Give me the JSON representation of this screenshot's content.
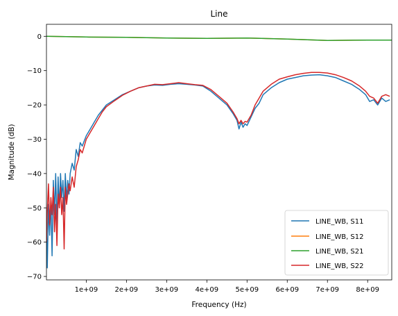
{
  "chart_data": {
    "type": "line",
    "title": "Line",
    "xlabel": "Frequency (Hz)",
    "ylabel": "Magnitude (dB)",
    "xlim": [
      10000000,
      8600000000
    ],
    "ylim": [
      -71,
      3.5
    ],
    "x_ticks": [
      1000000000,
      2000000000,
      3000000000,
      4000000000,
      5000000000,
      6000000000,
      7000000000,
      8000000000
    ],
    "x_tick_labels": [
      "1e+09",
      "2e+09",
      "3e+09",
      "4e+09",
      "5e+09",
      "6e+09",
      "7e+09",
      "8e+09"
    ],
    "y_ticks": [
      0,
      -10,
      -20,
      -30,
      -40,
      -50,
      -60,
      -70
    ],
    "y_tick_labels": [
      "0",
      "−10",
      "−20",
      "−30",
      "−40",
      "−50",
      "−60",
      "−70"
    ],
    "grid": false,
    "legend": "lower-right",
    "series": [
      {
        "name": "LINE_WB, S11",
        "color": "#1f77b4",
        "x": [
          10000000,
          30000000,
          60000000,
          90000000,
          120000000,
          150000000,
          180000000,
          210000000,
          240000000,
          270000000,
          300000000,
          330000000,
          360000000,
          390000000,
          420000000,
          450000000,
          480000000,
          510000000,
          540000000,
          570000000,
          600000000,
          650000000,
          700000000,
          750000000,
          800000000,
          850000000,
          900000000,
          1000000000,
          1100000000,
          1200000000,
          1300000000,
          1400000000,
          1500000000,
          1700000000,
          1900000000,
          2100000000,
          2300000000,
          2500000000,
          2700000000,
          2900000000,
          3100000000,
          3300000000,
          3500000000,
          3700000000,
          3900000000,
          4100000000,
          4300000000,
          4500000000,
          4650000000,
          4750000000,
          4800000000,
          4850000000,
          4900000000,
          4950000000,
          5000000000,
          5100000000,
          5200000000,
          5300000000,
          5400000000,
          5600000000,
          5800000000,
          6000000000,
          6200000000,
          6400000000,
          6600000000,
          6800000000,
          7000000000,
          7200000000,
          7400000000,
          7600000000,
          7800000000,
          7950000000,
          8050000000,
          8150000000,
          8250000000,
          8350000000,
          8450000000,
          8550000000
        ],
        "values": [
          -55,
          -67.5,
          -49,
          -58,
          -48,
          -64,
          -42,
          -52,
          -40,
          -55,
          -41,
          -50,
          -40,
          -47,
          -42,
          -51,
          -40,
          -48,
          -42,
          -46,
          -40,
          -37,
          -39,
          -33,
          -35,
          -31,
          -32,
          -29,
          -27,
          -25,
          -23,
          -21.5,
          -20,
          -18.5,
          -17,
          -16,
          -15,
          -14.5,
          -14.2,
          -14.3,
          -14,
          -13.8,
          -14,
          -14.2,
          -14.5,
          -16,
          -18,
          -20,
          -22.5,
          -24.5,
          -27,
          -25,
          -26.5,
          -25.5,
          -26,
          -23.5,
          -21,
          -19.5,
          -17,
          -15,
          -13.5,
          -12.5,
          -12,
          -11.5,
          -11.3,
          -11.2,
          -11.5,
          -12,
          -13,
          -14,
          -15.5,
          -17,
          -19,
          -18.5,
          -20,
          -18,
          -19,
          -18.5
        ]
      },
      {
        "name": "LINE_WB, S12",
        "color": "#ff7f0e",
        "x": [
          10000000,
          500000000,
          1000000000,
          2000000000,
          3000000000,
          4000000000,
          5000000000,
          6000000000,
          7000000000,
          8000000000,
          8600000000
        ],
        "values": [
          0,
          -0.1,
          -0.2,
          -0.3,
          -0.5,
          -0.6,
          -0.5,
          -0.8,
          -1.2,
          -1.1,
          -1.1
        ]
      },
      {
        "name": "LINE_WB, S21",
        "color": "#2ca02c",
        "x": [
          10000000,
          500000000,
          1000000000,
          2000000000,
          3000000000,
          4000000000,
          5000000000,
          6000000000,
          7000000000,
          8000000000,
          8600000000
        ],
        "values": [
          0,
          -0.1,
          -0.2,
          -0.3,
          -0.5,
          -0.6,
          -0.5,
          -0.8,
          -1.2,
          -1.1,
          -1.1
        ]
      },
      {
        "name": "LINE_WB, S22",
        "color": "#d62728",
        "x": [
          10000000,
          30000000,
          60000000,
          90000000,
          120000000,
          150000000,
          180000000,
          210000000,
          240000000,
          270000000,
          300000000,
          330000000,
          360000000,
          390000000,
          420000000,
          450000000,
          480000000,
          510000000,
          540000000,
          570000000,
          600000000,
          650000000,
          700000000,
          750000000,
          800000000,
          850000000,
          900000000,
          1000000000,
          1100000000,
          1200000000,
          1300000000,
          1400000000,
          1500000000,
          1700000000,
          1900000000,
          2100000000,
          2300000000,
          2500000000,
          2700000000,
          2900000000,
          3100000000,
          3300000000,
          3500000000,
          3700000000,
          3900000000,
          4100000000,
          4300000000,
          4500000000,
          4650000000,
          4750000000,
          4800000000,
          4850000000,
          4900000000,
          4950000000,
          5000000000,
          5100000000,
          5200000000,
          5300000000,
          5400000000,
          5600000000,
          5800000000,
          6000000000,
          6200000000,
          6400000000,
          6600000000,
          6800000000,
          7000000000,
          7200000000,
          7400000000,
          7600000000,
          7800000000,
          7950000000,
          8050000000,
          8150000000,
          8250000000,
          8350000000,
          8450000000,
          8550000000
        ],
        "values": [
          -60,
          -51,
          -43,
          -55,
          -47,
          -52,
          -44,
          -57,
          -49,
          -61,
          -46,
          -50,
          -44,
          -52,
          -47,
          -62,
          -44,
          -49,
          -46,
          -43,
          -45,
          -41,
          -44,
          -38,
          -36,
          -33,
          -34,
          -30,
          -28,
          -26,
          -24,
          -22,
          -20.5,
          -18.8,
          -17.2,
          -16,
          -15,
          -14.5,
          -14,
          -14.1,
          -13.8,
          -13.5,
          -13.8,
          -14.1,
          -14.3,
          -15.5,
          -17.5,
          -19.5,
          -22,
          -24,
          -25.5,
          -24.5,
          -25.5,
          -24.8,
          -25,
          -23,
          -20,
          -18,
          -16,
          -14,
          -12.5,
          -11.8,
          -11.2,
          -10.8,
          -10.5,
          -10.5,
          -10.7,
          -11.2,
          -12,
          -13,
          -14.5,
          -16,
          -17.5,
          -18,
          -19.5,
          -17.5,
          -17,
          -17.5
        ]
      }
    ]
  }
}
